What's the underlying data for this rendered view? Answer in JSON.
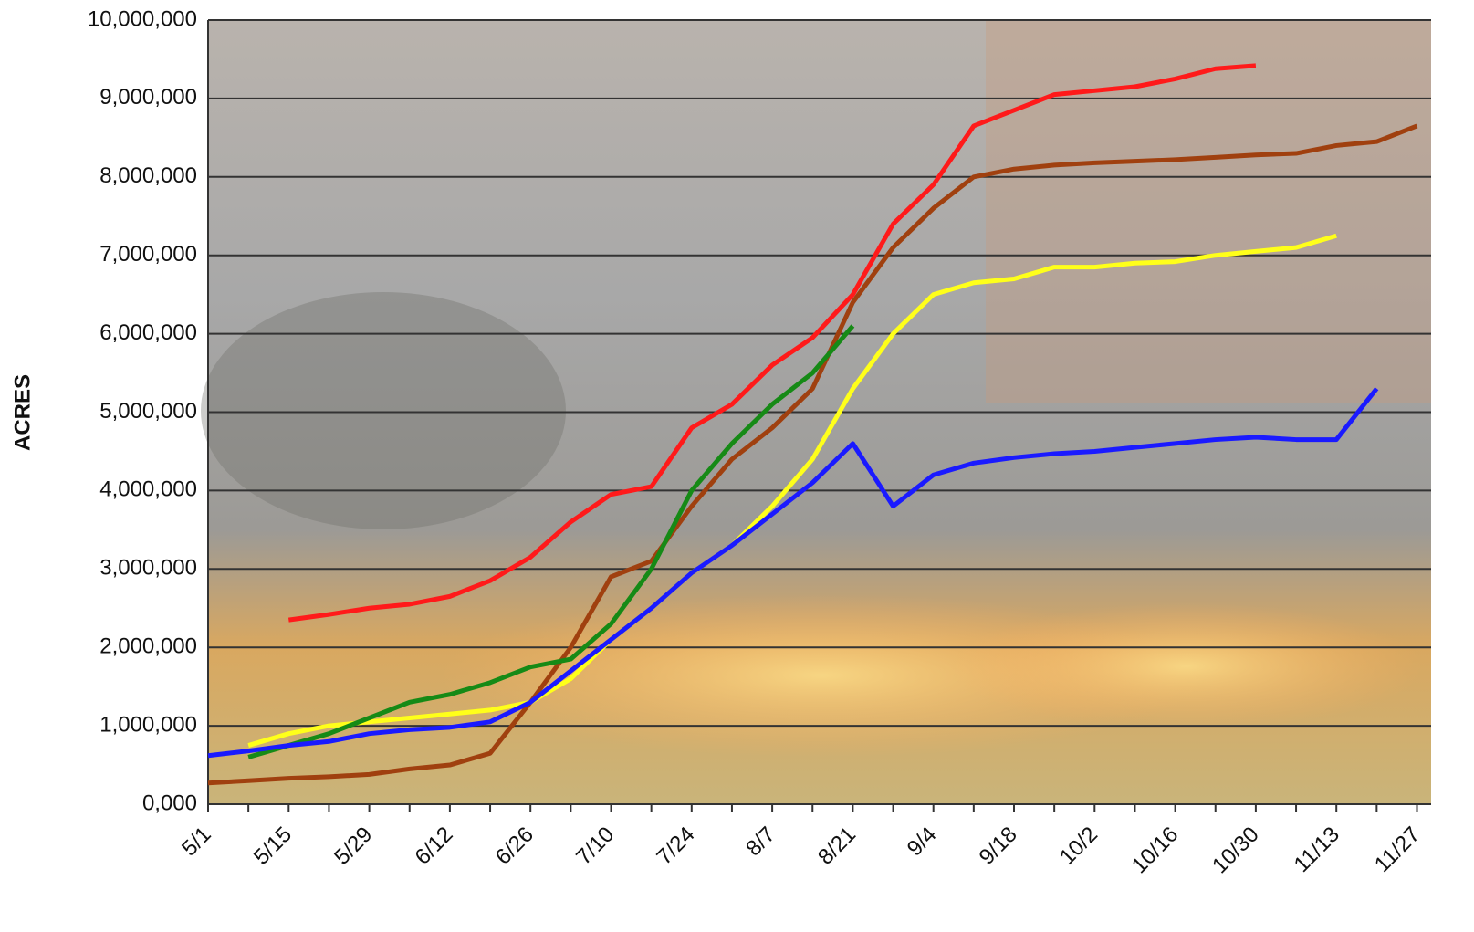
{
  "chart_data": {
    "type": "line",
    "y_label": "ACRES",
    "categories": [
      "5/1",
      null,
      "5/15",
      null,
      "5/29",
      null,
      "6/12",
      null,
      "6/26",
      null,
      "7/10",
      null,
      "7/24",
      null,
      "8/7",
      null,
      "8/21",
      null,
      "9/4",
      null,
      "9/18",
      null,
      "10/2",
      null,
      "10/16",
      null,
      "10/30",
      null,
      "11/13",
      null,
      "11/27"
    ],
    "series": [
      {
        "color": "#ff1a1a",
        "values": [
          null,
          null,
          2350000,
          2420000,
          2500000,
          2550000,
          2650000,
          2850000,
          3150000,
          3600000,
          3950000,
          4050000,
          4800000,
          5100000,
          5600000,
          5950000,
          6500000,
          7400000,
          7900000,
          8650000,
          8850000,
          9050000,
          9100000,
          9150000,
          9250000,
          9380000,
          9420000,
          null,
          null,
          null,
          null
        ]
      },
      {
        "color": "#a0400f",
        "values": [
          270000,
          300000,
          330000,
          350000,
          380000,
          450000,
          500000,
          650000,
          1300000,
          2000000,
          2900000,
          3100000,
          3800000,
          4400000,
          4800000,
          5300000,
          6400000,
          7100000,
          7600000,
          8000000,
          8100000,
          8150000,
          8180000,
          8200000,
          8220000,
          8250000,
          8280000,
          8300000,
          8400000,
          8450000,
          8650000
        ]
      },
      {
        "color": "#ffff1a",
        "values": [
          null,
          750000,
          900000,
          1000000,
          1050000,
          1100000,
          1150000,
          1200000,
          1300000,
          1600000,
          2100000,
          2500000,
          2950000,
          3300000,
          3800000,
          4400000,
          5300000,
          6000000,
          6500000,
          6650000,
          6700000,
          6850000,
          6850000,
          6900000,
          6920000,
          7000000,
          7050000,
          7100000,
          7250000,
          null,
          null
        ]
      },
      {
        "color": "#168a16",
        "values": [
          null,
          600000,
          750000,
          900000,
          1100000,
          1300000,
          1400000,
          1550000,
          1750000,
          1850000,
          2300000,
          3000000,
          4000000,
          4600000,
          5100000,
          5500000,
          6100000,
          null,
          null,
          null,
          null,
          null,
          null,
          null,
          null,
          null,
          null,
          null,
          null,
          null,
          null
        ]
      },
      {
        "color": "#1a1aff",
        "values": [
          620000,
          680000,
          750000,
          800000,
          900000,
          950000,
          980000,
          1050000,
          1300000,
          1700000,
          2100000,
          2500000,
          2950000,
          3300000,
          3700000,
          4100000,
          4600000,
          3800000,
          4200000,
          4350000,
          4420000,
          4470000,
          4500000,
          4550000,
          4600000,
          4650000,
          4680000,
          4650000,
          4650000,
          5300000,
          null
        ]
      }
    ],
    "ylim": [
      0,
      10000000
    ],
    "yticks": [
      {
        "value": 0,
        "label": "0,000"
      },
      {
        "value": 1000000,
        "label": "1,000,000"
      },
      {
        "value": 2000000,
        "label": "2,000,000"
      },
      {
        "value": 3000000,
        "label": "3,000,000"
      },
      {
        "value": 4000000,
        "label": "4,000,000"
      },
      {
        "value": 5000000,
        "label": "5,000,000"
      },
      {
        "value": 6000000,
        "label": "6,000,000"
      },
      {
        "value": 7000000,
        "label": "7,000,000"
      },
      {
        "value": 8000000,
        "label": "8,000,000"
      },
      {
        "value": 9000000,
        "label": "9,000,000"
      },
      {
        "value": 10000000,
        "label": "10,000,000"
      }
    ],
    "grid": true
  }
}
